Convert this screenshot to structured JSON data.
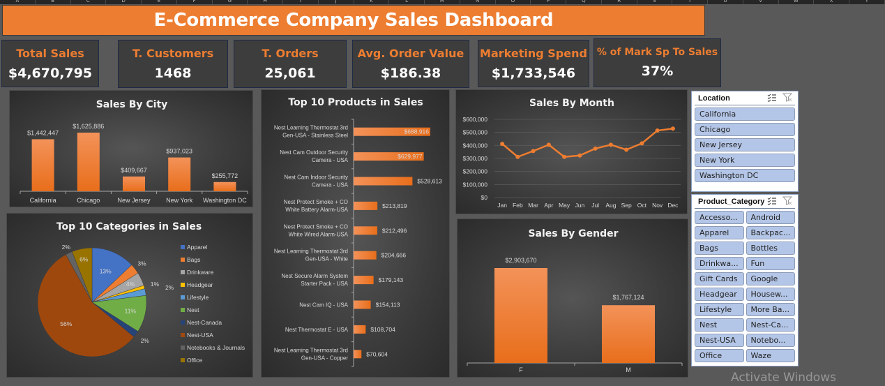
{
  "spreadsheet": {
    "column_headers": [
      "A",
      "B",
      "C",
      "D",
      "E",
      "F",
      "G",
      "H",
      "I",
      "J",
      "K",
      "L",
      "M",
      "N",
      "O",
      "P",
      "Q",
      "R",
      "S",
      "T",
      "U",
      "V",
      "W",
      "X",
      "Y"
    ]
  },
  "header": {
    "title": "E-Commerce Company Sales Dashboard"
  },
  "kpis": [
    {
      "label": "Total Sales",
      "value": "$4,670,795"
    },
    {
      "label": "T. Customers",
      "value": "1468"
    },
    {
      "label": "T. Orders",
      "value": "25,061"
    },
    {
      "label": "Avg. Order Value",
      "value": "$186.38"
    },
    {
      "label": "Marketing Spend",
      "value": "$1,733,546"
    },
    {
      "label": "% of Mark Sp To Sales",
      "value": "37%"
    }
  ],
  "colors": {
    "accent": "#ED7D31",
    "panel_bg": "#3d3d3d",
    "page_bg": "#595959",
    "slicer_item": "#B4C6E7"
  },
  "chart_data": [
    {
      "id": "sales_by_city",
      "type": "bar",
      "title": "Sales By City",
      "categories": [
        "California",
        "Chicago",
        "New Jersey",
        "New York",
        "Washington DC"
      ],
      "values": [
        1442447,
        1625886,
        409667,
        937023,
        255772
      ],
      "data_labels": [
        "$1,442,447",
        "$1,625,886",
        "$409,667",
        "$937,023",
        "$255,772"
      ],
      "xlabel": "",
      "ylabel": "",
      "grid": false
    },
    {
      "id": "top_products",
      "type": "bar",
      "orientation": "horizontal",
      "title": "Top 10 Products in Sales",
      "categories": [
        [
          "Nest Learning Thermostat 3rd",
          "Gen-USA - Stainless Steel"
        ],
        [
          "Nest Cam Outdoor Security",
          "Camera - USA"
        ],
        [
          "Nest Cam Indoor Security",
          "Camera - USA"
        ],
        [
          "Nest Protect Smoke + CO",
          "White Battery Alarm-USA"
        ],
        [
          "Nest Protect Smoke + CO",
          "White Wired Alarm-USA"
        ],
        [
          "Nest Learning Thermostat 3rd",
          "Gen-USA - White"
        ],
        [
          "Nest Secure Alarm System",
          "Starter Pack - USA"
        ],
        [
          "Nest Cam IQ - USA"
        ],
        [
          "Nest Thermostat E - USA"
        ],
        [
          "Nest Learning Thermostat 3rd",
          "Gen-USA - Copper"
        ]
      ],
      "values": [
        688916,
        629977,
        528613,
        213819,
        212496,
        204666,
        179143,
        154113,
        108704,
        70604
      ],
      "data_labels": [
        "$688,916",
        "$629,977",
        "$528,613",
        "$213,819",
        "$212,496",
        "$204,666",
        "$179,143",
        "$154,113",
        "$108,704",
        "$70,604"
      ],
      "grid": false
    },
    {
      "id": "sales_by_month",
      "type": "line",
      "title": "Sales By Month",
      "x": [
        "Jan",
        "Feb",
        "Mar",
        "Apr",
        "May",
        "Jun",
        "Jul",
        "Aug",
        "Sep",
        "Oct",
        "Nov",
        "Dec"
      ],
      "values": [
        412000,
        312000,
        357000,
        405000,
        312000,
        323000,
        376000,
        405000,
        367000,
        416000,
        514000,
        529000
      ],
      "ylim": [
        0,
        600000
      ],
      "yticks": [
        0,
        100000,
        200000,
        300000,
        400000,
        500000,
        600000
      ],
      "ytick_labels": [
        "$0",
        "$100,000",
        "$200,000",
        "$300,000",
        "$400,000",
        "$500,000",
        "$600,000"
      ],
      "grid": true
    },
    {
      "id": "top_categories",
      "type": "pie",
      "title": "Top 10 Categories in Sales",
      "categories": [
        "Apparel",
        "Bags",
        "Drinkware",
        "Headgear",
        "Lifestyle",
        "Nest",
        "Nest-Canada",
        "Nest-USA",
        "Notebooks & Journals",
        "Office"
      ],
      "values": [
        13,
        3,
        4,
        1,
        2,
        11,
        2,
        56,
        2,
        6
      ],
      "data_labels": [
        "13%",
        "3%",
        "4%",
        "1%",
        "2%",
        "11%",
        "2%",
        "56%",
        "2%",
        "6%"
      ],
      "colors": [
        "#4472C4",
        "#ED7D31",
        "#A5A5A5",
        "#FFC000",
        "#5B9BD5",
        "#70AD47",
        "#264478",
        "#9E480E",
        "#636363",
        "#997300"
      ],
      "legend": "right"
    },
    {
      "id": "sales_by_gender",
      "type": "bar",
      "title": "Sales By Gender",
      "categories": [
        "F",
        "M"
      ],
      "values": [
        2903670,
        1767124
      ],
      "data_labels": [
        "$2,903,670",
        "$1,767,124"
      ],
      "grid": false
    }
  ],
  "slicers": {
    "location": {
      "title": "Location",
      "items": [
        "California",
        "Chicago",
        "New Jersey",
        "New York",
        "Washington DC"
      ]
    },
    "product_category": {
      "title": "Product_Category",
      "items": [
        "Accesso...",
        "Android",
        "Apparel",
        "Backpac...",
        "Bags",
        "Bottles",
        "Drinkwa...",
        "Fun",
        "Gift Cards",
        "Google",
        "Headgear",
        "Housew...",
        "Lifestyle",
        "More Ba...",
        "Nest",
        "Nest-Ca...",
        "Nest-USA",
        "Notebo...",
        "Office",
        "Waze"
      ]
    }
  },
  "watermark": "Activate Windows"
}
